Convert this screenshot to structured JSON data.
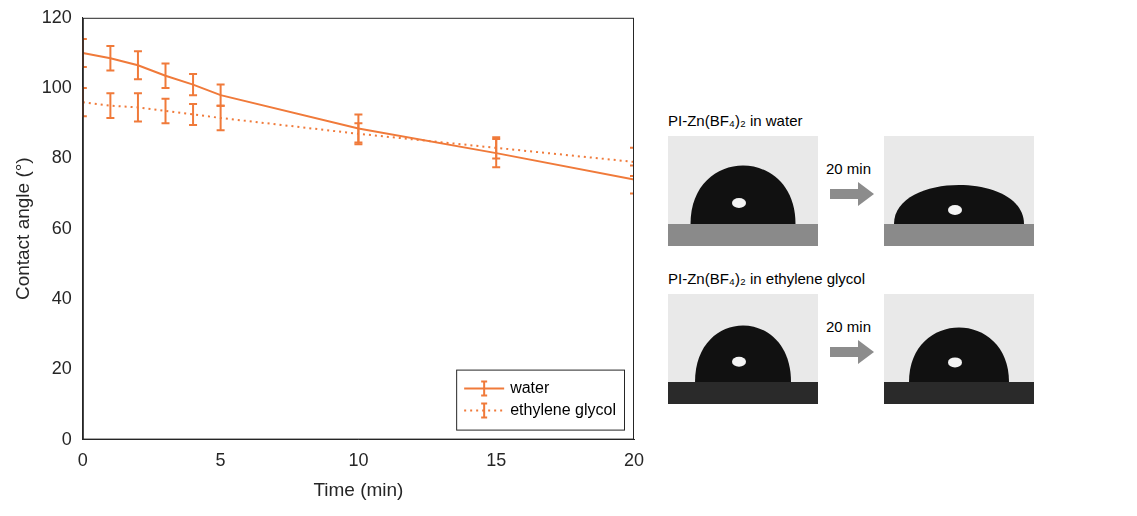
{
  "chart_data": {
    "type": "line",
    "x_label": "Time (min)",
    "y_label": "Contact angle (°)",
    "x": [
      0,
      1,
      2,
      3,
      4,
      5,
      10,
      15,
      20
    ],
    "series": [
      {
        "name": "water",
        "color": "#f07a3a",
        "line_style": "solid",
        "marker": "none",
        "values": [
          110,
          108.5,
          106.5,
          103.5,
          101,
          98,
          88.5,
          81.5,
          74
        ],
        "errors": [
          4,
          3.5,
          4,
          3.5,
          3,
          3,
          4,
          4,
          4
        ]
      },
      {
        "name": "ethylene glycol",
        "color": "#f07a3a",
        "line_style": "dotted",
        "marker": "none",
        "values": [
          96,
          95,
          94.5,
          93.5,
          92.5,
          91.5,
          87,
          83,
          79
        ],
        "errors": [
          4,
          3.5,
          4,
          3.5,
          3,
          3.5,
          3,
          3,
          4
        ]
      }
    ],
    "xlim": [
      0,
      20
    ],
    "xticks": [
      0,
      5,
      10,
      15,
      20
    ],
    "ylim": [
      0,
      120
    ],
    "yticks": [
      0,
      20,
      40,
      60,
      80,
      100,
      120
    ],
    "grid": false,
    "legend": "lower right"
  },
  "images": [
    {
      "label": "PI-Zn(BF₄)₂ in water",
      "arrow_label": "20 min"
    },
    {
      "label": "PI-Zn(BF₄)₂ in ethylene glycol",
      "arrow_label": "20 min"
    }
  ]
}
